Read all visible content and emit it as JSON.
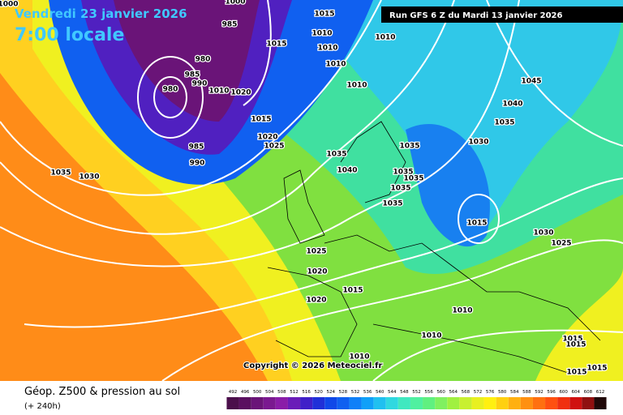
{
  "header": {
    "valid_date": "Vendredi 23 janvier 2026",
    "local_time": "7:00 locale",
    "run": "Run GFS 6 Z du Mardi 13 janvier 2026"
  },
  "map": {
    "isobar_labels": [
      "1000",
      "1000",
      "1015",
      "1010",
      "1010",
      "1015",
      "1010",
      "1010",
      "985",
      "980",
      "985",
      "980",
      "990",
      "1020",
      "1010",
      "1010",
      "1015",
      "1020",
      "1025",
      "985",
      "990",
      "1035",
      "1030",
      "1035",
      "1040",
      "1035",
      "1030",
      "1035",
      "1040",
      "1045",
      "1035",
      "1035",
      "1035",
      "1035",
      "1015",
      "1030",
      "1025",
      "1025",
      "1020",
      "1015",
      "1020",
      "1010",
      "1010",
      "1010",
      "1015",
      "1015",
      "1015",
      "1015"
    ],
    "copyright": "Copyright © 2026 Meteociel.fr"
  },
  "footer": {
    "title": "Géop. Z500 & pression au sol",
    "lead": "(+ 240h)"
  },
  "legend": {
    "values": [
      492,
      496,
      500,
      504,
      508,
      512,
      516,
      520,
      524,
      528,
      532,
      536,
      540,
      544,
      548,
      552,
      556,
      560,
      564,
      568,
      572,
      576,
      580,
      584,
      588,
      592,
      596,
      600,
      604,
      608,
      612
    ],
    "colors": [
      "#4b0f4b",
      "#5a1060",
      "#6a1478",
      "#7a1890",
      "#8a1ca8",
      "#6a1cb8",
      "#4020c8",
      "#2030d8",
      "#1048e8",
      "#1060f0",
      "#1080f8",
      "#10a0f8",
      "#20c0f0",
      "#30d8e0",
      "#40e8c0",
      "#50f0a0",
      "#60f080",
      "#80f060",
      "#a0f040",
      "#c8f030",
      "#e8f020",
      "#fff010",
      "#ffd010",
      "#ffb010",
      "#ff9010",
      "#ff7010",
      "#ff5010",
      "#f03010",
      "#d01010",
      "#901010",
      "#200808"
    ]
  }
}
